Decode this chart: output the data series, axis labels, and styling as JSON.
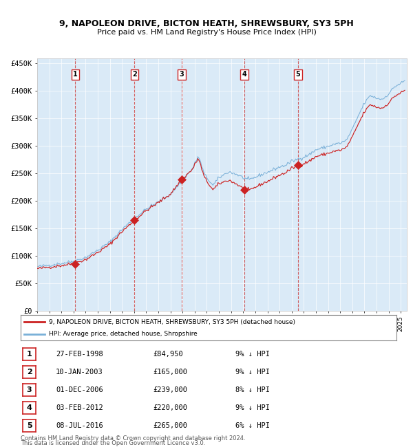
{
  "title1": "9, NAPOLEON DRIVE, BICTON HEATH, SHREWSBURY, SY3 5PH",
  "title2": "Price paid vs. HM Land Registry's House Price Index (HPI)",
  "fig_bg_color": "#ffffff",
  "plot_bg_color": "#daeaf7",
  "hpi_color": "#7ab0d8",
  "price_color": "#cc2222",
  "grid_color": "#ffffff",
  "vline_color": "#cc4444",
  "ylim": [
    0,
    460000
  ],
  "xlim_left": 1995.0,
  "xlim_right": 2025.5,
  "yticks": [
    0,
    50000,
    100000,
    150000,
    200000,
    250000,
    300000,
    350000,
    400000,
    450000
  ],
  "ytick_labels": [
    "£0",
    "£50K",
    "£100K",
    "£150K",
    "£200K",
    "£250K",
    "£300K",
    "£350K",
    "£400K",
    "£450K"
  ],
  "sales": [
    {
      "num": 1,
      "date_x": 1998.15,
      "price": 84950,
      "label": "27-FEB-1998",
      "price_str": "£84,950",
      "pct": "9%",
      "dir": "↓"
    },
    {
      "num": 2,
      "date_x": 2003.03,
      "price": 165000,
      "label": "10-JAN-2003",
      "price_str": "£165,000",
      "pct": "9%",
      "dir": "↓"
    },
    {
      "num": 3,
      "date_x": 2006.92,
      "price": 239000,
      "label": "01-DEC-2006",
      "price_str": "£239,000",
      "pct": "8%",
      "dir": "↓"
    },
    {
      "num": 4,
      "date_x": 2012.09,
      "price": 220000,
      "label": "03-FEB-2012",
      "price_str": "£220,000",
      "pct": "9%",
      "dir": "↓"
    },
    {
      "num": 5,
      "date_x": 2016.52,
      "price": 265000,
      "label": "08-JUL-2016",
      "price_str": "£265,000",
      "pct": "6%",
      "dir": "↓"
    }
  ],
  "legend_line1": "9, NAPOLEON DRIVE, BICTON HEATH, SHREWSBURY, SY3 5PH (detached house)",
  "legend_line2": "HPI: Average price, detached house, Shropshire",
  "footer1": "Contains HM Land Registry data © Crown copyright and database right 2024.",
  "footer2": "This data is licensed under the Open Government Licence v3.0."
}
